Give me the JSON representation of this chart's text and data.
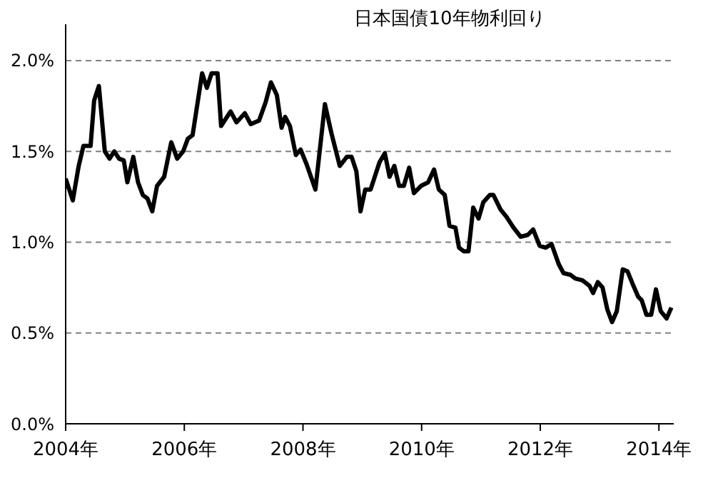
{
  "chart_data": {
    "type": "line",
    "title": "日本国債10年物利回り",
    "x": [
      2004.0,
      2004.12,
      2004.22,
      2004.3,
      2004.42,
      2004.48,
      2004.56,
      2004.66,
      2004.74,
      2004.82,
      2004.9,
      2004.98,
      2005.04,
      2005.14,
      2005.22,
      2005.3,
      2005.38,
      2005.46,
      2005.54,
      2005.66,
      2005.78,
      2005.88,
      2005.98,
      2006.06,
      2006.14,
      2006.3,
      2006.38,
      2006.46,
      2006.56,
      2006.62,
      2006.78,
      2006.88,
      2007.02,
      2007.12,
      2007.26,
      2007.37,
      2007.46,
      2007.56,
      2007.64,
      2007.7,
      2007.78,
      2007.88,
      2007.96,
      2008.06,
      2008.21,
      2008.37,
      2008.48,
      2008.62,
      2008.74,
      2008.82,
      2008.9,
      2008.97,
      2009.05,
      2009.14,
      2009.29,
      2009.38,
      2009.46,
      2009.54,
      2009.62,
      2009.7,
      2009.79,
      2009.87,
      2009.99,
      2010.11,
      2010.21,
      2010.29,
      2010.39,
      2010.47,
      2010.57,
      2010.63,
      2010.71,
      2010.79,
      2010.87,
      2010.96,
      2011.04,
      2011.15,
      2011.21,
      2011.33,
      2011.43,
      2011.55,
      2011.67,
      2011.79,
      2011.88,
      2011.99,
      2012.09,
      2012.19,
      2012.31,
      2012.39,
      2012.51,
      2012.59,
      2012.71,
      2012.83,
      2012.89,
      2012.97,
      2013.05,
      2013.13,
      2013.21,
      2013.29,
      2013.39,
      2013.47,
      2013.57,
      2013.65,
      2013.71,
      2013.79,
      2013.87,
      2013.95,
      2014.03,
      2014.13,
      2014.21
    ],
    "series": [
      {
        "color": "#000000",
        "values": [
          1.35,
          1.23,
          1.42,
          1.53,
          1.53,
          1.78,
          1.86,
          1.5,
          1.46,
          1.5,
          1.46,
          1.45,
          1.33,
          1.47,
          1.33,
          1.26,
          1.24,
          1.17,
          1.31,
          1.36,
          1.55,
          1.46,
          1.5,
          1.57,
          1.59,
          1.93,
          1.85,
          1.93,
          1.93,
          1.64,
          1.72,
          1.66,
          1.71,
          1.65,
          1.67,
          1.77,
          1.88,
          1.81,
          1.63,
          1.69,
          1.64,
          1.48,
          1.51,
          1.43,
          1.29,
          1.76,
          1.6,
          1.42,
          1.47,
          1.47,
          1.39,
          1.17,
          1.29,
          1.29,
          1.44,
          1.49,
          1.36,
          1.42,
          1.31,
          1.31,
          1.41,
          1.27,
          1.31,
          1.33,
          1.4,
          1.29,
          1.26,
          1.09,
          1.08,
          0.97,
          0.95,
          0.95,
          1.19,
          1.13,
          1.22,
          1.26,
          1.26,
          1.18,
          1.14,
          1.08,
          1.03,
          1.04,
          1.07,
          0.98,
          0.97,
          0.99,
          0.88,
          0.83,
          0.82,
          0.8,
          0.79,
          0.76,
          0.72,
          0.78,
          0.75,
          0.63,
          0.56,
          0.62,
          0.85,
          0.84,
          0.76,
          0.7,
          0.68,
          0.6,
          0.6,
          0.74,
          0.62,
          0.58,
          0.64
        ]
      }
    ],
    "xlim": [
      2004,
      2014.25
    ],
    "xticks": [
      {
        "value": 2004,
        "label": "2004年"
      },
      {
        "value": 2006,
        "label": "2006年"
      },
      {
        "value": 2008,
        "label": "2008年"
      },
      {
        "value": 2010,
        "label": "2010年"
      },
      {
        "value": 2012,
        "label": "2012年"
      },
      {
        "value": 2014,
        "label": "2014年"
      }
    ],
    "ylim": [
      0,
      2.2
    ],
    "yticks": [
      {
        "value": 0,
        "label": "0.0%"
      },
      {
        "value": 0.5,
        "label": "0.5%"
      },
      {
        "value": 1.0,
        "label": "1.0%"
      },
      {
        "value": 1.5,
        "label": "1.5%"
      },
      {
        "value": 2.0,
        "label": "2.0%"
      }
    ],
    "grid": "y",
    "legend": false,
    "marker": "none",
    "line_style": "solid"
  }
}
